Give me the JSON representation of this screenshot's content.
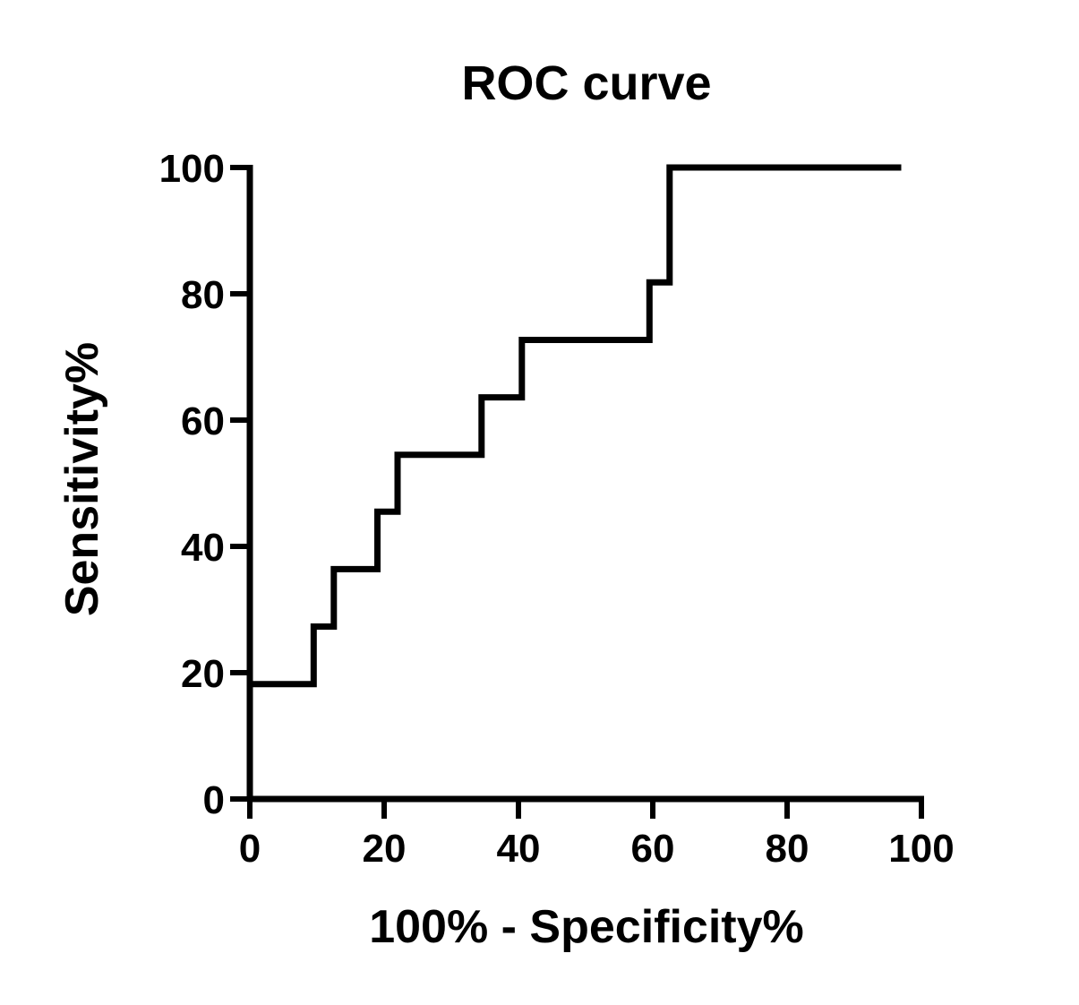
{
  "chart_data": {
    "type": "line",
    "step": true,
    "title": "ROC curve",
    "xlabel": "100% - Specificity%",
    "ylabel": "Sensitivity%",
    "xlim": [
      0,
      100
    ],
    "ylim": [
      0,
      100
    ],
    "xticks": [
      "0",
      "20",
      "40",
      "60",
      "80",
      "100"
    ],
    "yticks": [
      "0",
      "20",
      "40",
      "60",
      "80",
      "100"
    ],
    "grid": false,
    "line_color": "#000000",
    "series": [
      {
        "name": "ROC",
        "points": [
          [
            0,
            0
          ],
          [
            0,
            18.2
          ],
          [
            9.5,
            18.2
          ],
          [
            9.5,
            27.3
          ],
          [
            12.5,
            27.3
          ],
          [
            12.5,
            36.4
          ],
          [
            19,
            36.4
          ],
          [
            19,
            45.5
          ],
          [
            22,
            45.5
          ],
          [
            22,
            54.5
          ],
          [
            34.5,
            54.5
          ],
          [
            34.5,
            63.6
          ],
          [
            40.5,
            63.6
          ],
          [
            40.5,
            72.7
          ],
          [
            59.5,
            72.7
          ],
          [
            59.5,
            81.8
          ],
          [
            62.5,
            81.8
          ],
          [
            62.5,
            100
          ],
          [
            97,
            100
          ]
        ]
      }
    ]
  }
}
